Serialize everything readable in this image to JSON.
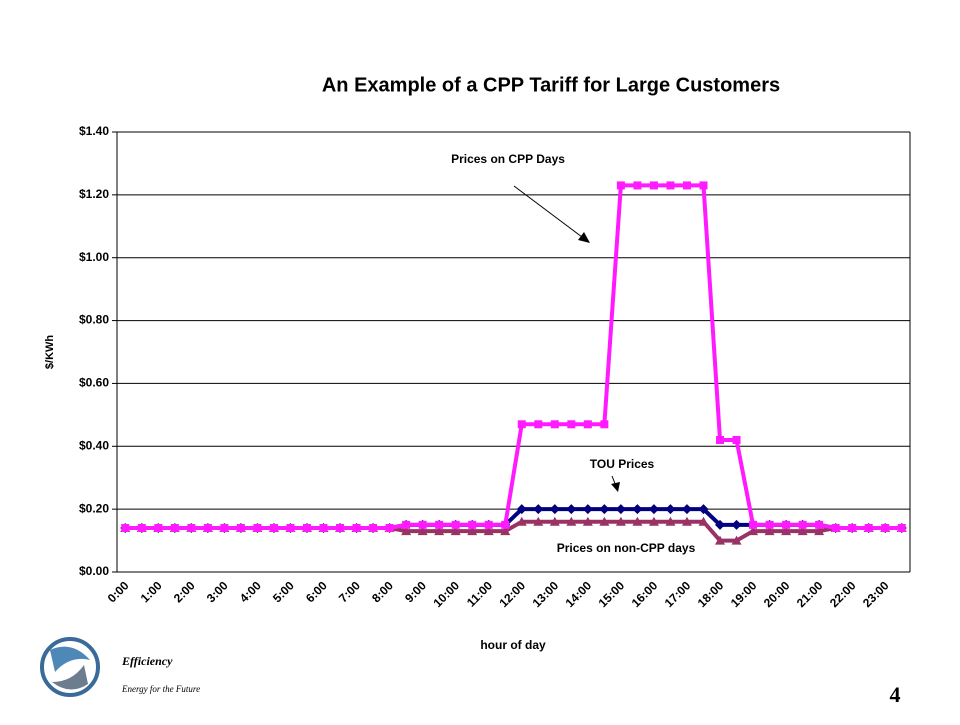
{
  "chart_data": {
    "type": "line",
    "title": "An Example of a CPP Tariff for Large Customers",
    "x_label": "hour of day",
    "y_label": "$/KWh",
    "categories": [
      "0:00",
      null,
      "1:00",
      null,
      "2:00",
      null,
      "3:00",
      null,
      "4:00",
      null,
      "5:00",
      null,
      "6:00",
      null,
      "7:00",
      null,
      "8:00",
      null,
      "9:00",
      null,
      "10:00",
      null,
      "11:00",
      null,
      "12:00",
      null,
      "13:00",
      null,
      "14:00",
      null,
      "15:00",
      null,
      "16:00",
      null,
      "17:00",
      null,
      "18:00",
      null,
      "19:00",
      null,
      "20:00",
      null,
      "21:00",
      null,
      "22:00",
      null,
      "23:00",
      null
    ],
    "series": [
      {
        "name": "TOU Prices",
        "color": "#000080",
        "marker": "diamond",
        "values": [
          0.14,
          0.14,
          0.14,
          0.14,
          0.14,
          0.14,
          0.14,
          0.14,
          0.14,
          0.14,
          0.14,
          0.14,
          0.14,
          0.14,
          0.14,
          0.14,
          0.14,
          0.15,
          0.15,
          0.15,
          0.15,
          0.15,
          0.15,
          0.15,
          0.2,
          0.2,
          0.2,
          0.2,
          0.2,
          0.2,
          0.2,
          0.2,
          0.2,
          0.2,
          0.2,
          0.2,
          0.15,
          0.15,
          0.15,
          0.15,
          0.15,
          0.15,
          0.15,
          0.14,
          0.14,
          0.14,
          0.14,
          0.14
        ]
      },
      {
        "name": "Prices on non-CPP days",
        "color": "#993366",
        "marker": "triangle",
        "values": [
          0.14,
          0.14,
          0.14,
          0.14,
          0.14,
          0.14,
          0.14,
          0.14,
          0.14,
          0.14,
          0.14,
          0.14,
          0.14,
          0.14,
          0.14,
          0.14,
          0.14,
          0.13,
          0.13,
          0.13,
          0.13,
          0.13,
          0.13,
          0.13,
          0.16,
          0.16,
          0.16,
          0.16,
          0.16,
          0.16,
          0.16,
          0.16,
          0.16,
          0.16,
          0.16,
          0.16,
          0.1,
          0.1,
          0.13,
          0.13,
          0.13,
          0.13,
          0.13,
          0.14,
          0.14,
          0.14,
          0.14,
          0.14
        ]
      },
      {
        "name": "Prices on CPP Days",
        "color": "#ff1aff",
        "marker": "square",
        "values": [
          0.14,
          0.14,
          0.14,
          0.14,
          0.14,
          0.14,
          0.14,
          0.14,
          0.14,
          0.14,
          0.14,
          0.14,
          0.14,
          0.14,
          0.14,
          0.14,
          0.14,
          0.15,
          0.15,
          0.15,
          0.15,
          0.15,
          0.15,
          0.15,
          0.47,
          0.47,
          0.47,
          0.47,
          0.47,
          0.47,
          1.23,
          1.23,
          1.23,
          1.23,
          1.23,
          1.23,
          0.42,
          0.42,
          0.15,
          0.15,
          0.15,
          0.15,
          0.15,
          0.14,
          0.14,
          0.14,
          0.14,
          0.14
        ]
      }
    ],
    "ylim": [
      0,
      1.4
    ],
    "yticks": [
      {
        "value": 0,
        "label": "$0.00"
      },
      {
        "value": 0.2,
        "label": "$0.20"
      },
      {
        "value": 0.4,
        "label": "$0.40"
      },
      {
        "value": 0.6,
        "label": "$0.60"
      },
      {
        "value": 0.8,
        "label": "$0.80"
      },
      {
        "value": 1.0,
        "label": "$1.00"
      },
      {
        "value": 1.2,
        "label": "$1.20"
      },
      {
        "value": 1.4,
        "label": "$1.40"
      }
    ],
    "grid": true
  },
  "footer": {
    "brand": "Efficiency",
    "tagline": "Energy for the Future",
    "page_number": "4"
  }
}
